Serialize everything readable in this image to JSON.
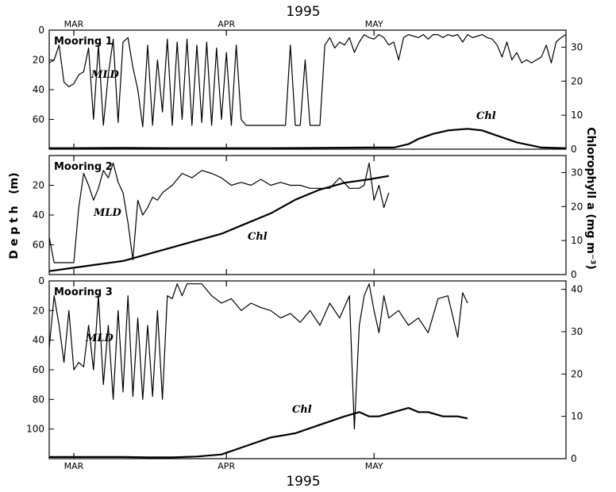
{
  "figure": {
    "year_top": "1995",
    "year_bottom": "1995",
    "months_top": [
      "MAR",
      "APR",
      "MAY"
    ],
    "months_bottom": [
      "MAR",
      "APR",
      "MAY"
    ],
    "left_axis_label": "D e p t h   (m)",
    "right_axis_label": "Chlorophyll a (mg m⁻³)"
  },
  "chart_data": [
    {
      "type": "line",
      "title": "Mooring 1",
      "annotations": [
        "MLD",
        "Chl"
      ],
      "x_unit": "day of year 1995",
      "xlim": [
        55,
        160
      ],
      "left_ylim": [
        0,
        80
      ],
      "left_yticks": [
        0,
        20,
        40,
        60
      ],
      "right_ylim": [
        0,
        35
      ],
      "right_yticks": [
        0,
        10,
        20,
        30
      ],
      "series": [
        {
          "name": "MLD",
          "axis": "left",
          "x": [
            55,
            56,
            57,
            58,
            59,
            60,
            61,
            62,
            63,
            64,
            65,
            66,
            67,
            68,
            69,
            70,
            71,
            72,
            73,
            74,
            75,
            76,
            77,
            78,
            79,
            80,
            81,
            82,
            83,
            84,
            85,
            86,
            87,
            88,
            89,
            90,
            91,
            92,
            93,
            94,
            95,
            96,
            97,
            98,
            99,
            100,
            101,
            102,
            103,
            104,
            105,
            106,
            107,
            108,
            109,
            110,
            111,
            112,
            113,
            114,
            115,
            116,
            117,
            118,
            119,
            120,
            121,
            122,
            123,
            124,
            125,
            126,
            127,
            128,
            129,
            130,
            131,
            132,
            133,
            134,
            135,
            136,
            137,
            138,
            139,
            140,
            141,
            142,
            143,
            144,
            145,
            146,
            147,
            148,
            149,
            150,
            151,
            152,
            153,
            154,
            155,
            156,
            157,
            158,
            159,
            160
          ],
          "values": [
            22,
            20,
            10,
            35,
            38,
            36,
            30,
            28,
            12,
            60,
            10,
            64,
            30,
            6,
            62,
            8,
            5,
            25,
            40,
            65,
            10,
            64,
            20,
            55,
            6,
            64,
            8,
            60,
            6,
            64,
            10,
            62,
            8,
            64,
            12,
            60,
            15,
            64,
            10,
            60,
            64,
            64,
            64,
            64,
            64,
            64,
            64,
            64,
            64,
            10,
            64,
            64,
            20,
            64,
            64,
            64,
            10,
            5,
            12,
            8,
            10,
            5,
            15,
            8,
            3,
            5,
            6,
            3,
            5,
            10,
            8,
            20,
            5,
            3,
            4,
            5,
            3,
            6,
            3,
            3,
            5,
            3,
            4,
            3,
            8,
            3,
            5,
            4,
            3,
            5,
            6,
            10,
            18,
            8,
            20,
            15,
            22,
            20,
            22,
            20,
            18,
            10,
            22,
            8,
            5,
            3
          ]
        },
        {
          "name": "Chl",
          "axis": "right",
          "x": [
            55,
            60,
            70,
            80,
            90,
            100,
            110,
            120,
            125,
            128,
            130,
            133,
            136,
            140,
            143,
            146,
            150,
            155,
            160
          ],
          "values": [
            0.3,
            0.3,
            0.4,
            0.3,
            0.3,
            0.3,
            0.4,
            0.5,
            0.5,
            1.5,
            3,
            4.5,
            5.5,
            6,
            5.5,
            4,
            2,
            0.5,
            0.3
          ]
        }
      ]
    },
    {
      "type": "line",
      "title": "Mooring 2",
      "annotations": [
        "MLD",
        "Chl"
      ],
      "x_unit": "day of year 1995",
      "xlim": [
        55,
        160
      ],
      "left_ylim": [
        0,
        80
      ],
      "left_yticks": [
        20,
        40,
        60
      ],
      "right_ylim": [
        0,
        35
      ],
      "right_yticks": [
        0,
        10,
        20,
        30
      ],
      "series": [
        {
          "name": "MLD",
          "axis": "left",
          "x": [
            55,
            56,
            57,
            58,
            59,
            60,
            61,
            62,
            63,
            64,
            65,
            66,
            67,
            68,
            69,
            70,
            71,
            72,
            73,
            74,
            75,
            76,
            77,
            78,
            80,
            82,
            84,
            86,
            88,
            90,
            92,
            94,
            96,
            98,
            100,
            102,
            104,
            106,
            108,
            110,
            112,
            114,
            116,
            118,
            119,
            120,
            121,
            122,
            123,
            124
          ],
          "values": [
            55,
            72,
            72,
            72,
            72,
            72,
            35,
            12,
            20,
            30,
            22,
            10,
            15,
            5,
            18,
            25,
            45,
            70,
            30,
            40,
            35,
            28,
            30,
            25,
            20,
            12,
            15,
            10,
            12,
            15,
            20,
            18,
            20,
            16,
            20,
            18,
            20,
            20,
            22,
            22,
            22,
            15,
            22,
            22,
            20,
            5,
            30,
            20,
            35,
            25
          ]
        },
        {
          "name": "Chl",
          "axis": "right",
          "x": [
            55,
            60,
            65,
            70,
            75,
            80,
            85,
            90,
            95,
            100,
            105,
            110,
            115,
            120,
            124
          ],
          "values": [
            1,
            2,
            3,
            4,
            6,
            8,
            10,
            12,
            15,
            18,
            22,
            25,
            27,
            28,
            29
          ]
        }
      ]
    },
    {
      "type": "line",
      "title": "Mooring 3",
      "annotations": [
        "MLD",
        "Chl"
      ],
      "x_unit": "day of year 1995",
      "xlim": [
        55,
        160
      ],
      "left_ylim": [
        0,
        120
      ],
      "left_yticks": [
        0,
        20,
        40,
        60,
        80,
        100
      ],
      "right_ylim": [
        0,
        42
      ],
      "right_yticks": [
        0,
        10,
        20,
        30,
        40
      ],
      "series": [
        {
          "name": "MLD",
          "axis": "left",
          "x": [
            55,
            56,
            57,
            58,
            59,
            60,
            61,
            62,
            63,
            64,
            65,
            66,
            67,
            68,
            69,
            70,
            71,
            72,
            73,
            74,
            75,
            76,
            77,
            78,
            79,
            80,
            81,
            82,
            83,
            84,
            86,
            88,
            90,
            92,
            94,
            96,
            98,
            100,
            102,
            104,
            106,
            108,
            110,
            112,
            114,
            116,
            117,
            118,
            119,
            120,
            121,
            122,
            123,
            124,
            126,
            128,
            130,
            132,
            134,
            136,
            138,
            139,
            140
          ],
          "values": [
            45,
            10,
            30,
            55,
            20,
            60,
            55,
            58,
            30,
            60,
            10,
            70,
            30,
            80,
            20,
            75,
            10,
            78,
            25,
            80,
            30,
            78,
            20,
            80,
            10,
            12,
            2,
            10,
            2,
            2,
            2,
            10,
            15,
            12,
            20,
            15,
            18,
            20,
            25,
            22,
            28,
            20,
            30,
            15,
            25,
            10,
            100,
            30,
            10,
            2,
            20,
            35,
            10,
            25,
            20,
            30,
            25,
            35,
            12,
            10,
            38,
            8,
            15
          ]
        },
        {
          "name": "Chl",
          "axis": "right",
          "x": [
            55,
            60,
            65,
            70,
            75,
            80,
            85,
            90,
            95,
            100,
            105,
            110,
            115,
            118,
            120,
            122,
            125,
            128,
            130,
            132,
            135,
            138,
            140
          ],
          "values": [
            0.4,
            0.4,
            0.4,
            0.4,
            0.3,
            0.3,
            0.5,
            1,
            3,
            5,
            6,
            8,
            10,
            11,
            10,
            10,
            11,
            12,
            11,
            11,
            10,
            10,
            9.5
          ]
        }
      ]
    }
  ]
}
